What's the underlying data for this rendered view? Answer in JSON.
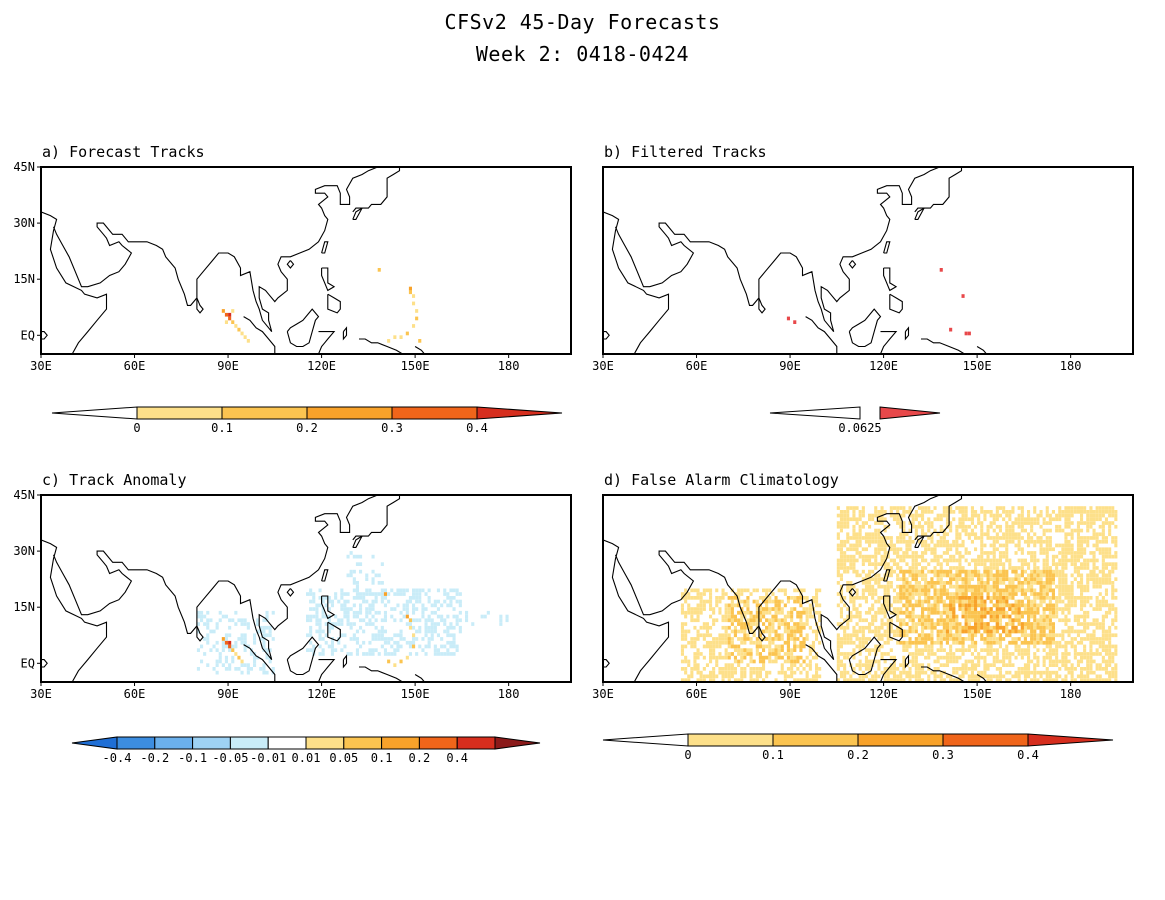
{
  "figure": {
    "title": "CFSv2 45-Day Forecasts",
    "subtitle": "Week 2: 0418-0424"
  },
  "map_extent": {
    "lon": [
      30,
      200
    ],
    "lat": [
      -5,
      45
    ]
  },
  "axes": {
    "xticks": [
      "30E",
      "60E",
      "90E",
      "120E",
      "150E",
      "180"
    ],
    "xtick_values": [
      30,
      60,
      90,
      120,
      150,
      180
    ],
    "yticks": [
      "45N",
      "30N",
      "15N",
      "EQ"
    ],
    "ytick_values": [
      45,
      30,
      15,
      0
    ]
  },
  "panels": [
    {
      "id": "a",
      "title": "a) Forecast Tracks",
      "yaxis": true,
      "colorbar": {
        "labels": [
          "0",
          "0.1",
          "0.2",
          "0.3",
          "0.4"
        ],
        "colors": [
          "#ffffff",
          "#fde08a",
          "#fbc450",
          "#f8a22a",
          "#f0651a",
          "#d62e1e"
        ]
      },
      "cells": [
        [
          88,
          6,
          "#f8a22a"
        ],
        [
          89,
          5,
          "#f0651a"
        ],
        [
          90,
          5,
          "#d62e1e"
        ],
        [
          90,
          4,
          "#f0651a"
        ],
        [
          91,
          3,
          "#fbc450"
        ],
        [
          92,
          2,
          "#fde08a"
        ],
        [
          93,
          1,
          "#fbc450"
        ],
        [
          94,
          0,
          "#fde08a"
        ],
        [
          95,
          -1,
          "#fde08a"
        ],
        [
          96,
          -2,
          "#fde08a"
        ],
        [
          89,
          3,
          "#fde08a"
        ],
        [
          91,
          6,
          "#fde08a"
        ],
        [
          138,
          17,
          "#fbc450"
        ],
        [
          148,
          12,
          "#f8a22a"
        ],
        [
          148,
          11,
          "#fbc450"
        ],
        [
          149,
          10,
          "#fde08a"
        ],
        [
          149,
          8,
          "#fde08a"
        ],
        [
          150,
          6,
          "#fde08a"
        ],
        [
          150,
          4,
          "#fbc450"
        ],
        [
          149,
          2,
          "#fde08a"
        ],
        [
          147,
          0,
          "#fbc450"
        ],
        [
          145,
          -1,
          "#fde08a"
        ],
        [
          143,
          -1,
          "#fde08a"
        ],
        [
          141,
          -2,
          "#fde08a"
        ],
        [
          151,
          -2,
          "#fbc450"
        ]
      ]
    },
    {
      "id": "b",
      "title": "b) Filtered Tracks",
      "yaxis": false,
      "colorbar": {
        "labels": [
          "0.0625"
        ],
        "colors": [
          "#ffffff",
          "#e8484a"
        ]
      },
      "cells": [
        [
          89,
          4,
          "#e8484a"
        ],
        [
          91,
          3,
          "#e8484a"
        ],
        [
          138,
          17,
          "#e8484a"
        ],
        [
          145,
          10,
          "#e8484a"
        ],
        [
          141,
          1,
          "#e8484a"
        ],
        [
          146,
          0,
          "#e8484a"
        ],
        [
          147,
          0,
          "#e8484a"
        ]
      ]
    },
    {
      "id": "c",
      "title": "c) Track Anomaly",
      "yaxis": true,
      "colorbar": {
        "labels": [
          "-0.4",
          "-0.2",
          "-0.1",
          "-0.05",
          "-0.01",
          "0.01",
          "0.05",
          "0.1",
          "0.2",
          "0.4"
        ],
        "colors": [
          "#1f6fd6",
          "#3c8de0",
          "#6bb0ec",
          "#9ed2f4",
          "#c9ecf8",
          "#ffffff",
          "#fde08a",
          "#fbc450",
          "#f8a22a",
          "#f0651a",
          "#d62e1e",
          "#8b1a1a"
        ]
      },
      "cells": [
        [
          88,
          6,
          "#f8a22a"
        ],
        [
          89,
          5,
          "#f0651a"
        ],
        [
          90,
          5,
          "#d62e1e"
        ],
        [
          90,
          4,
          "#f0651a"
        ],
        [
          91,
          3,
          "#fbc450"
        ],
        [
          92,
          2,
          "#fde08a"
        ],
        [
          93,
          1,
          "#fbc450"
        ],
        [
          94,
          0,
          "#fde08a"
        ],
        [
          147,
          12,
          "#f8a22a"
        ],
        [
          148,
          11,
          "#fbc450"
        ],
        [
          148,
          9,
          "#fde08a"
        ],
        [
          149,
          7,
          "#fde08a"
        ],
        [
          149,
          4,
          "#fbc450"
        ],
        [
          147,
          1,
          "#fde08a"
        ],
        [
          145,
          0,
          "#fbc450"
        ],
        [
          143,
          -1,
          "#fde08a"
        ],
        [
          140,
          18,
          "#f8a22a"
        ],
        [
          141,
          0,
          "#fbc450"
        ]
      ],
      "neg_fields": [
        {
          "lon": [
            80,
            105
          ],
          "lat": [
            -3,
            14
          ],
          "color": "#c9ecf8",
          "density": 0.35
        },
        {
          "lon": [
            115,
            165
          ],
          "lat": [
            2,
            20
          ],
          "color": "#c9ecf8",
          "density": 0.45
        },
        {
          "lon": [
            128,
            142
          ],
          "lat": [
            20,
            30
          ],
          "color": "#c9ecf8",
          "density": 0.25
        },
        {
          "lon": [
            165,
            180
          ],
          "lat": [
            10,
            14
          ],
          "color": "#c9ecf8",
          "density": 0.2
        }
      ]
    },
    {
      "id": "d",
      "title": "d) False Alarm Climatology",
      "yaxis": false,
      "colorbar": {
        "labels": [
          "0",
          "0.1",
          "0.2",
          "0.3",
          "0.4"
        ],
        "colors": [
          "#ffffff",
          "#fde08a",
          "#fbc450",
          "#f8a22a",
          "#f0651a",
          "#d62e1e"
        ]
      },
      "cells": [],
      "clim_fields": [
        {
          "lon": [
            55,
            100
          ],
          "lat": [
            -5,
            20
          ],
          "color": "#fde08a",
          "density": 0.55
        },
        {
          "lon": [
            70,
            95
          ],
          "lat": [
            0,
            18
          ],
          "color": "#fbc450",
          "density": 0.35
        },
        {
          "lon": [
            105,
            195
          ],
          "lat": [
            -5,
            42
          ],
          "color": "#fde08a",
          "density": 0.6
        },
        {
          "lon": [
            125,
            175
          ],
          "lat": [
            5,
            25
          ],
          "color": "#fbc450",
          "density": 0.5
        },
        {
          "lon": [
            140,
            165
          ],
          "lat": [
            8,
            18
          ],
          "color": "#f8a22a",
          "density": 0.25
        }
      ]
    }
  ]
}
